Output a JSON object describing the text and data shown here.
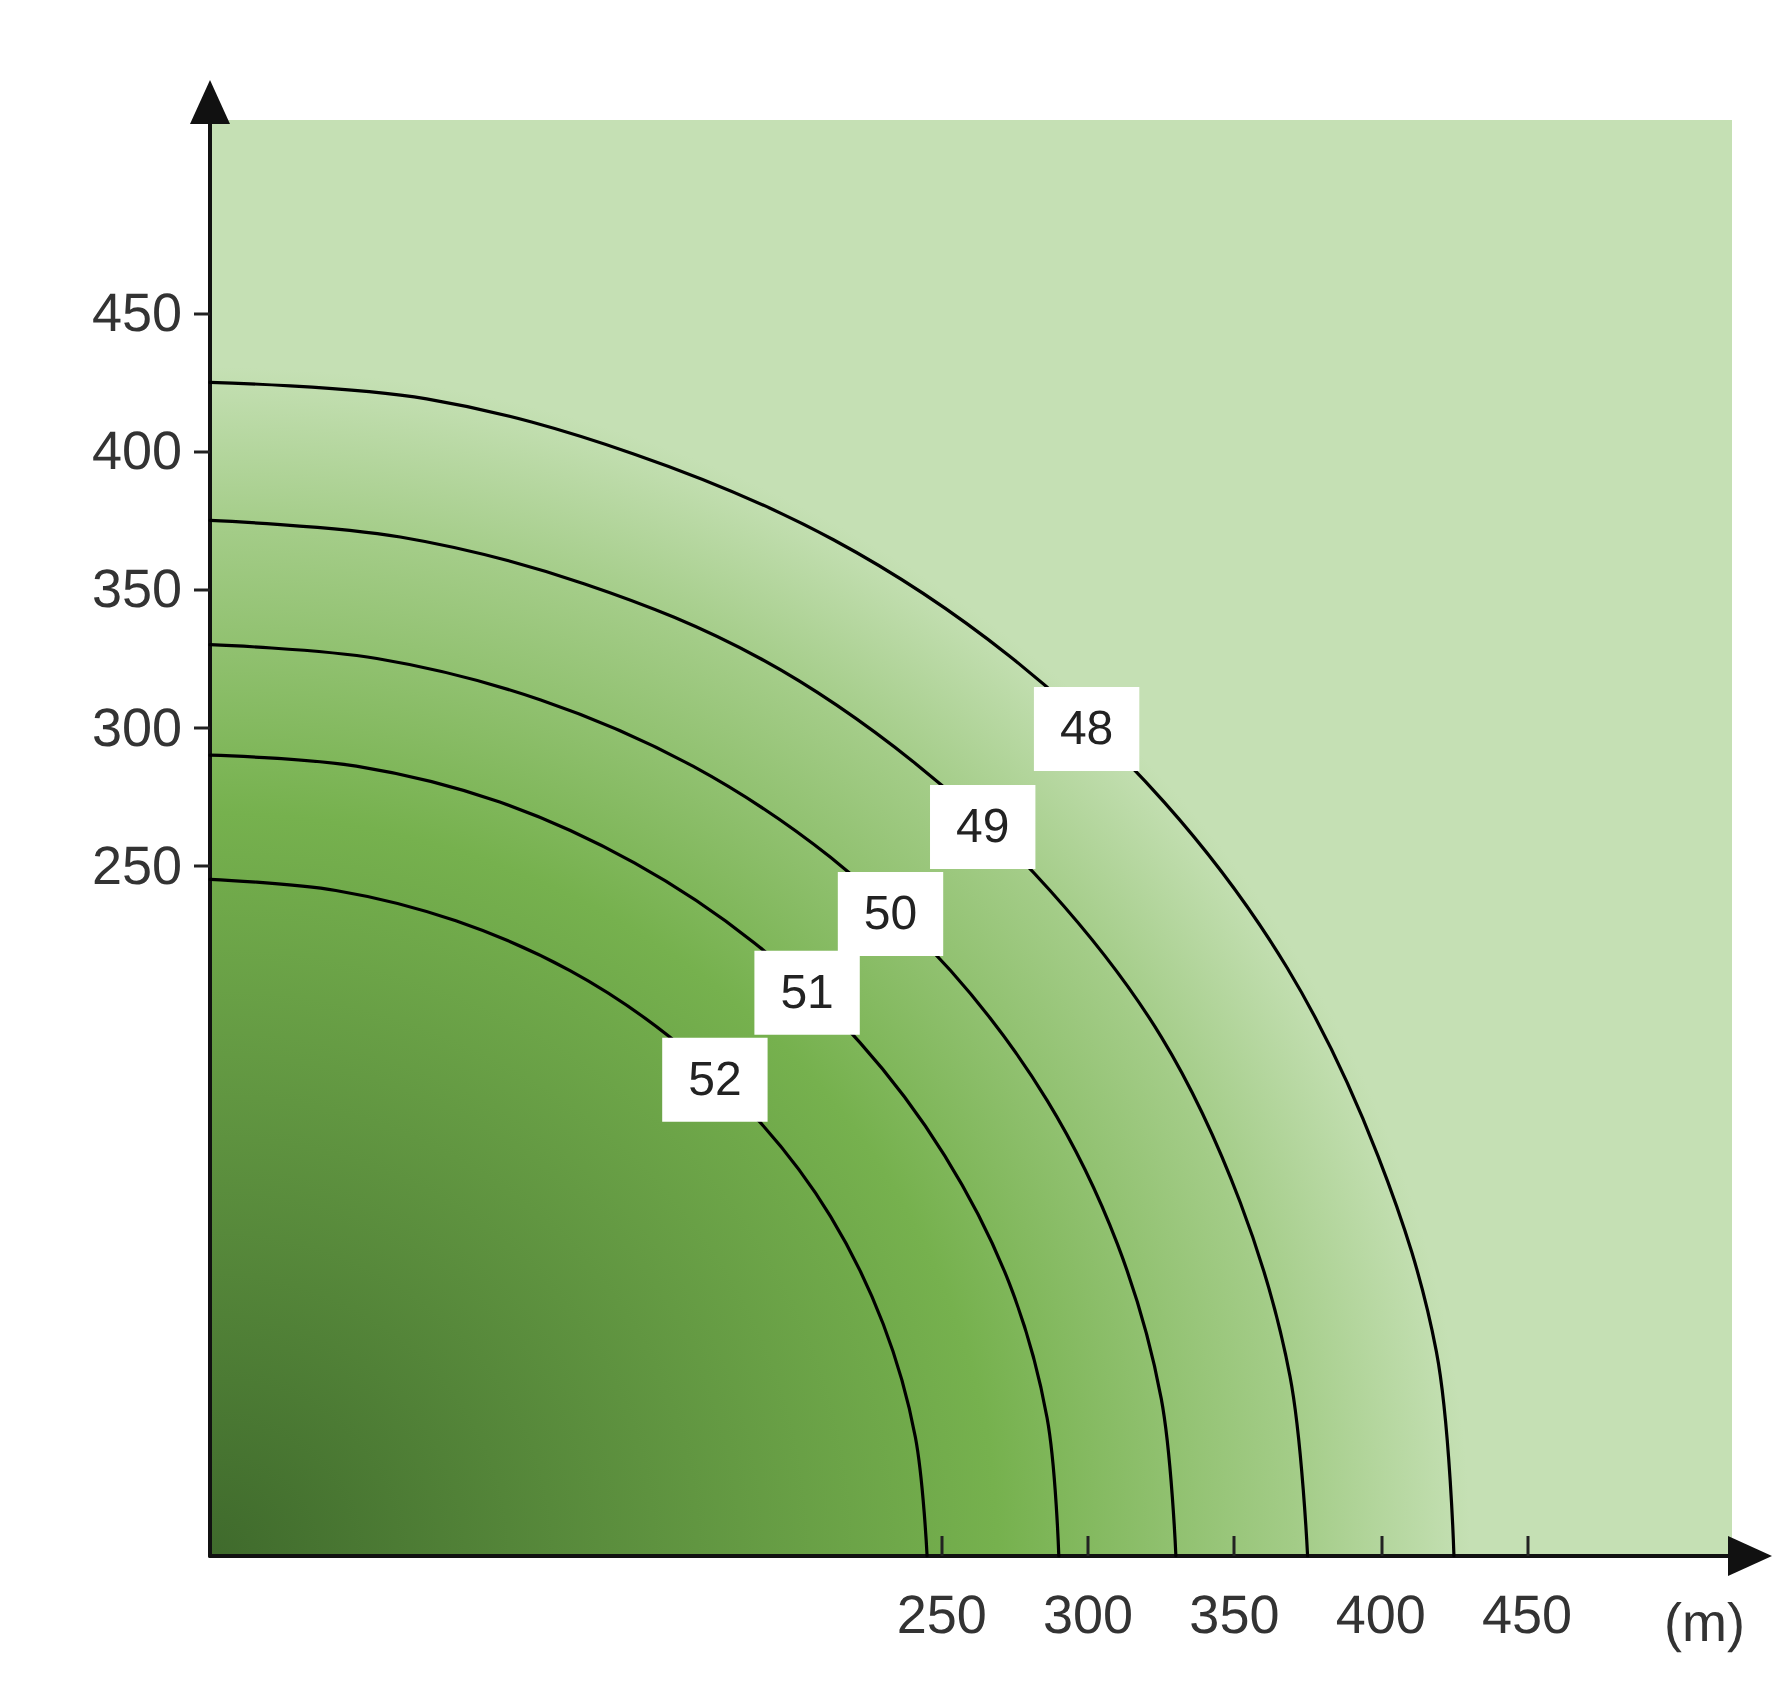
{
  "chart_data": {
    "type": "line",
    "xlabel": "(m)",
    "series": [
      {
        "name": "52",
        "color": "#000000",
        "x": [
          245,
          241,
          230,
          212,
          188,
          157,
          123,
          84,
          43,
          0
        ],
        "values": [
          0,
          43,
          84,
          123,
          157,
          188,
          212,
          230,
          241,
          245
        ]
      },
      {
        "name": "51",
        "color": "#000000",
        "x": [
          290,
          286,
          273,
          251,
          222,
          186,
          145,
          99,
          50,
          0
        ],
        "values": [
          0,
          50,
          99,
          145,
          186,
          222,
          251,
          273,
          286,
          290
        ]
      },
      {
        "name": "50",
        "color": "#000000",
        "x": [
          330,
          325,
          310,
          286,
          253,
          212,
          165,
          113,
          57,
          0
        ],
        "values": [
          0,
          57,
          113,
          165,
          212,
          253,
          286,
          310,
          325,
          330
        ]
      },
      {
        "name": "49",
        "color": "#000000",
        "x": [
          375,
          369,
          352,
          325,
          287,
          241,
          188,
          128,
          65,
          0
        ],
        "values": [
          0,
          65,
          128,
          188,
          241,
          287,
          325,
          352,
          369,
          375
        ]
      },
      {
        "name": "48",
        "color": "#000000",
        "x": [
          425,
          419,
          399,
          368,
          326,
          273,
          213,
          145,
          74,
          0
        ],
        "values": [
          0,
          74,
          145,
          213,
          273,
          326,
          368,
          399,
          419,
          425
        ]
      }
    ],
    "xlim": [
      0,
      520
    ],
    "ylim": [
      0,
      520
    ],
    "xticks": [
      250,
      300,
      350,
      400,
      450
    ],
    "yticks": [
      250,
      300,
      350,
      400,
      450
    ],
    "grid": false,
    "legend": false,
    "marker": "none",
    "line_style": "solid"
  }
}
